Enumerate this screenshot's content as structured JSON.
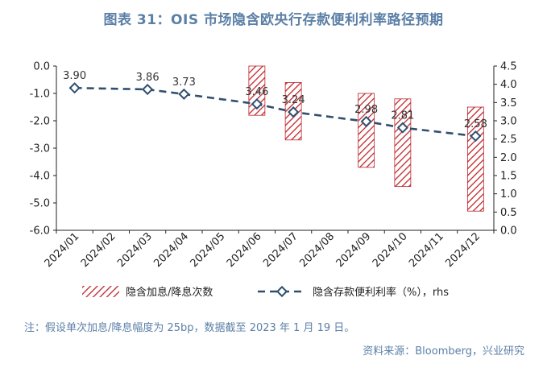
{
  "title": "图表 31：OIS 市场隐含欧央行存款便利利率路径预期",
  "note": "注：假设单次加息/降息幅度为 25bp，数据截至 2023 年 1 月 19 日。",
  "source": "资料来源：Bloomberg，兴业研究",
  "colors": {
    "bar_hatch": "#c0272d",
    "line": "#2f4f6f",
    "text": "#5b7fa7"
  },
  "chart_data": {
    "type": "bar",
    "categories": [
      "2024/01",
      "2024/02",
      "2024/03",
      "2024/04",
      "2024/05",
      "2024/06",
      "2024/07",
      "2024/08",
      "2024/09",
      "2024/10",
      "2024/11",
      "2024/12"
    ],
    "series": [
      {
        "name": "隐含加息/降息次数",
        "type": "bar",
        "axis": "left",
        "bars": [
          {
            "category": "2024/06",
            "top": 0.0,
            "bottom": -1.8
          },
          {
            "category": "2024/07",
            "top": -0.6,
            "bottom": -2.7
          },
          {
            "category": "2024/09",
            "top": -1.0,
            "bottom": -3.7
          },
          {
            "category": "2024/10",
            "top": -1.2,
            "bottom": -4.4
          },
          {
            "category": "2024/12",
            "top": -1.5,
            "bottom": -5.3
          }
        ]
      },
      {
        "name": "隐含存款便利利率（%），rhs",
        "type": "line",
        "axis": "right",
        "points": [
          {
            "category": "2024/01",
            "value": 3.9,
            "label": "3.90"
          },
          {
            "category": "2024/03",
            "value": 3.86,
            "label": "3.86"
          },
          {
            "category": "2024/04",
            "value": 3.73,
            "label": "3.73"
          },
          {
            "category": "2024/06",
            "value": 3.46,
            "label": "3.46"
          },
          {
            "category": "2024/07",
            "value": 3.24,
            "label": "3.24"
          },
          {
            "category": "2024/09",
            "value": 2.98,
            "label": "2.98"
          },
          {
            "category": "2024/10",
            "value": 2.81,
            "label": "2.81"
          },
          {
            "category": "2024/12",
            "value": 2.58,
            "label": "2.58"
          }
        ]
      }
    ],
    "left_axis": {
      "ylim": [
        -6.0,
        0.0
      ],
      "ticks": [
        "0.0",
        "-1.0",
        "-2.0",
        "-3.0",
        "-4.0",
        "-5.0",
        "-6.0"
      ]
    },
    "right_axis": {
      "ylim": [
        0.0,
        4.5
      ],
      "ticks": [
        "4.5",
        "4.0",
        "3.5",
        "3.0",
        "2.5",
        "2.0",
        "1.5",
        "1.0",
        "0.5",
        "0.0"
      ]
    },
    "grid": false,
    "legend": "bottom"
  }
}
